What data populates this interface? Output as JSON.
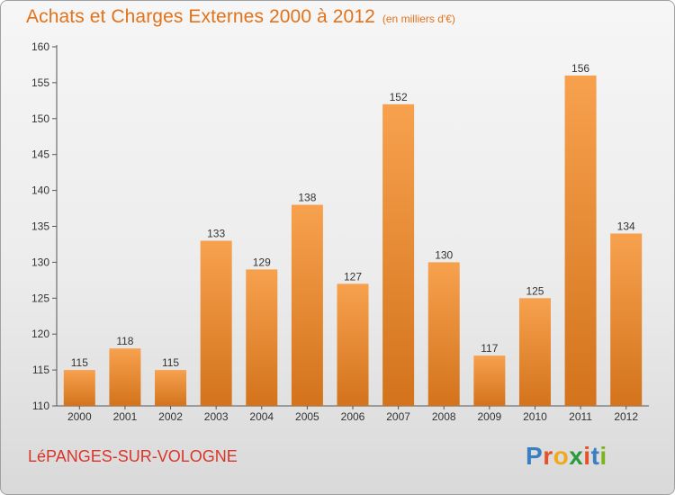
{
  "chart_data": {
    "type": "bar",
    "title": "Achats et Charges Externes 2000 à 2012",
    "subtitle": "(en milliers d'€)",
    "categories": [
      "2000",
      "2001",
      "2002",
      "2003",
      "2004",
      "2005",
      "2006",
      "2007",
      "2008",
      "2009",
      "2010",
      "2011",
      "2012"
    ],
    "values": [
      115,
      118,
      115,
      133,
      129,
      138,
      127,
      152,
      130,
      117,
      125,
      156,
      134
    ],
    "xlabel": "",
    "ylabel": "",
    "ylim": [
      110,
      160
    ],
    "yticks": [
      110,
      115,
      120,
      125,
      130,
      135,
      140,
      145,
      150,
      155,
      160
    ],
    "grid": false,
    "data_labels": true,
    "colors": {
      "bar_light": "#f7a14e",
      "bar_dark": "#d3731c",
      "title": "#e2731b"
    }
  },
  "footer": {
    "commune": "LéPANGES-SUR-VOLOGNE",
    "logo_letters": [
      "P",
      "r",
      "o",
      "x",
      "i",
      "t",
      "i"
    ],
    "logo_colors": [
      "#3a7fc1",
      "#e6512a",
      "#f2a81d",
      "#2a9a3c",
      "#e6512a",
      "#3a7fc1",
      "#7ab51d"
    ]
  }
}
